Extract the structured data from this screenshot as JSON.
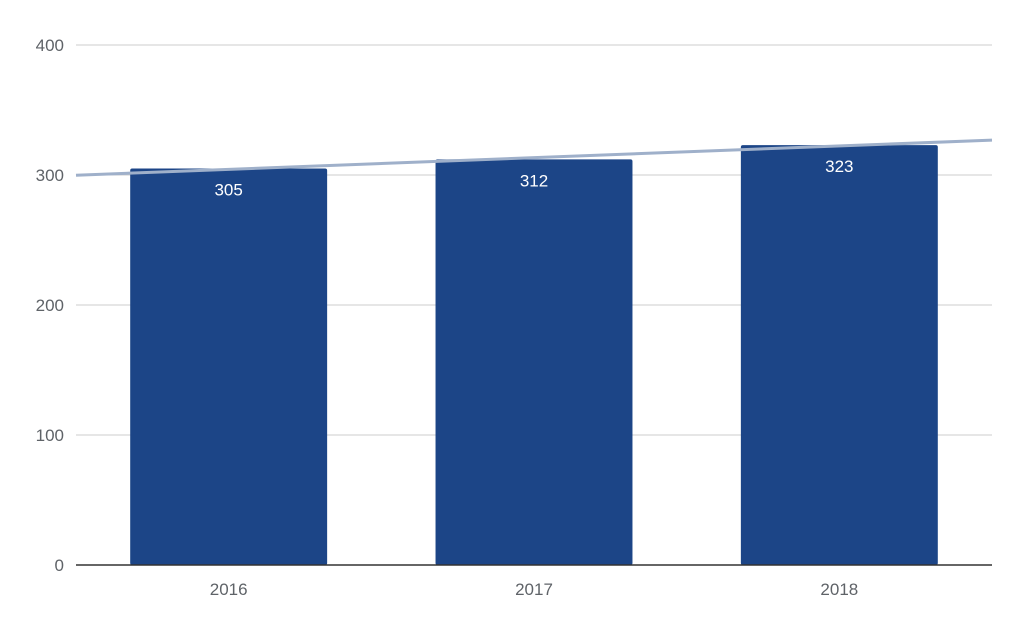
{
  "chart_data": {
    "type": "bar",
    "title": "",
    "xlabel": "",
    "ylabel": "",
    "categories": [
      "2016",
      "2017",
      "2018"
    ],
    "series": [
      {
        "values": [
          305,
          312,
          323
        ],
        "color": "#1c4587"
      }
    ],
    "data_labels": [
      "305",
      "312",
      "323"
    ],
    "ylim": [
      0,
      400
    ],
    "yticks": [
      0,
      100,
      200,
      300,
      400
    ],
    "ytick_labels": [
      "0",
      "100",
      "200",
      "300",
      "400"
    ],
    "trendline": {
      "type": "linear",
      "color": "#9fb0ca"
    },
    "grid": true,
    "legend": "none",
    "gridline_color": "#cccccc",
    "axis_color": "#333333"
  }
}
